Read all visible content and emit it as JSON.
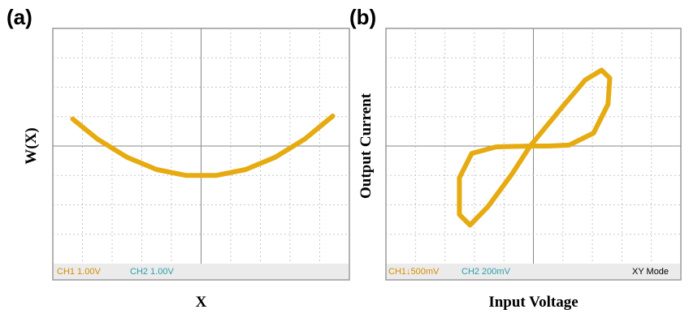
{
  "chart_data": [
    {
      "type": "line",
      "panel_label": "(a)",
      "xlabel": "X",
      "ylabel": "W(X)",
      "status": [
        "CH1  1.00V",
        "CH2  1.00V"
      ],
      "color": "#e6ab10",
      "xlim": [
        -5,
        5
      ],
      "ylim": [
        -4,
        4
      ],
      "x": [
        -4.33,
        -3.5,
        -2.5,
        -1.5,
        -0.5,
        0.5,
        1.5,
        2.5,
        3.5,
        4.44
      ],
      "values": [
        0.92,
        0.24,
        -0.38,
        -0.8,
        -1.0,
        -1.0,
        -0.8,
        -0.38,
        0.24,
        1.02
      ]
    },
    {
      "type": "line",
      "panel_label": "(b)",
      "xlabel": "Input Voltage",
      "ylabel": "Output Current",
      "status": [
        "CH1↓500mV",
        "CH2  200mV",
        "XY Mode"
      ],
      "color": "#e6ab10",
      "xlim": [
        -5,
        5
      ],
      "ylim": [
        -4,
        4
      ],
      "x": [
        -0.11,
        0.94,
        1.76,
        2.31,
        2.59,
        2.53,
        2.04,
        1.21,
        0.52,
        -0.11,
        -1.27,
        -2.09,
        -2.51,
        -2.51,
        -2.15,
        -1.54,
        -0.72,
        -0.11
      ],
      "values": [
        0,
        1.28,
        2.25,
        2.58,
        2.31,
        1.42,
        0.44,
        0.03,
        0,
        0,
        -0.03,
        -0.25,
        -1.08,
        -2.33,
        -2.69,
        -2.06,
        -0.94,
        0
      ]
    }
  ]
}
